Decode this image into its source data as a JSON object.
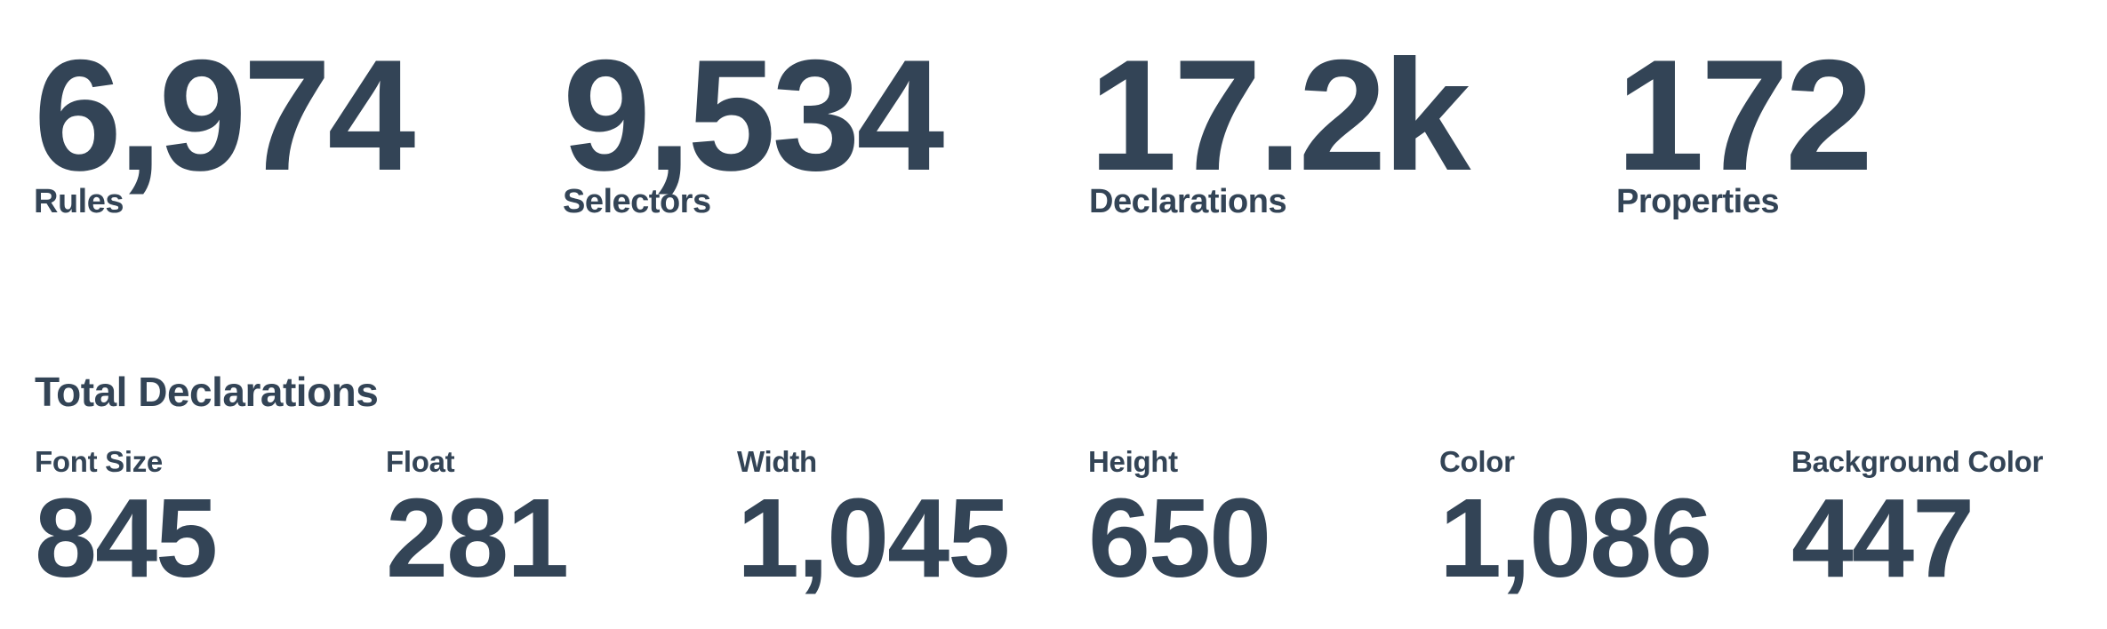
{
  "summary": {
    "items": [
      {
        "value": "6,974",
        "label": "Rules"
      },
      {
        "value": "9,534",
        "label": "Selectors"
      },
      {
        "value": "17.2k",
        "label": "Declarations"
      },
      {
        "value": "172",
        "label": "Properties"
      }
    ]
  },
  "total_declarations": {
    "title": "Total Declarations",
    "items": [
      {
        "label": "Font Size",
        "value": "845"
      },
      {
        "label": "Float",
        "value": "281"
      },
      {
        "label": "Width",
        "value": "1,045"
      },
      {
        "label": "Height",
        "value": "650"
      },
      {
        "label": "Color",
        "value": "1,086"
      },
      {
        "label": "Background Color",
        "value": "447"
      }
    ]
  },
  "colors": {
    "text": "#334456",
    "background": "#ffffff"
  }
}
